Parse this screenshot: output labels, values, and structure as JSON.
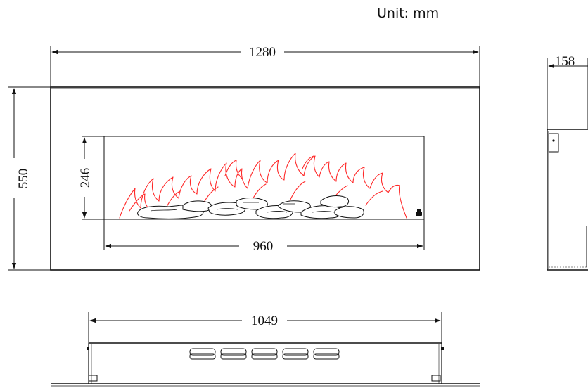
{
  "unit_label": "Unit: mm",
  "dimensions": {
    "overall_width": "1280",
    "overall_height": "550",
    "viewing_height": "246",
    "viewing_width": "960",
    "depth": "158",
    "bottom_width": "1049"
  },
  "colors": {
    "line": "#111111",
    "flame": "#ff2a2a"
  }
}
